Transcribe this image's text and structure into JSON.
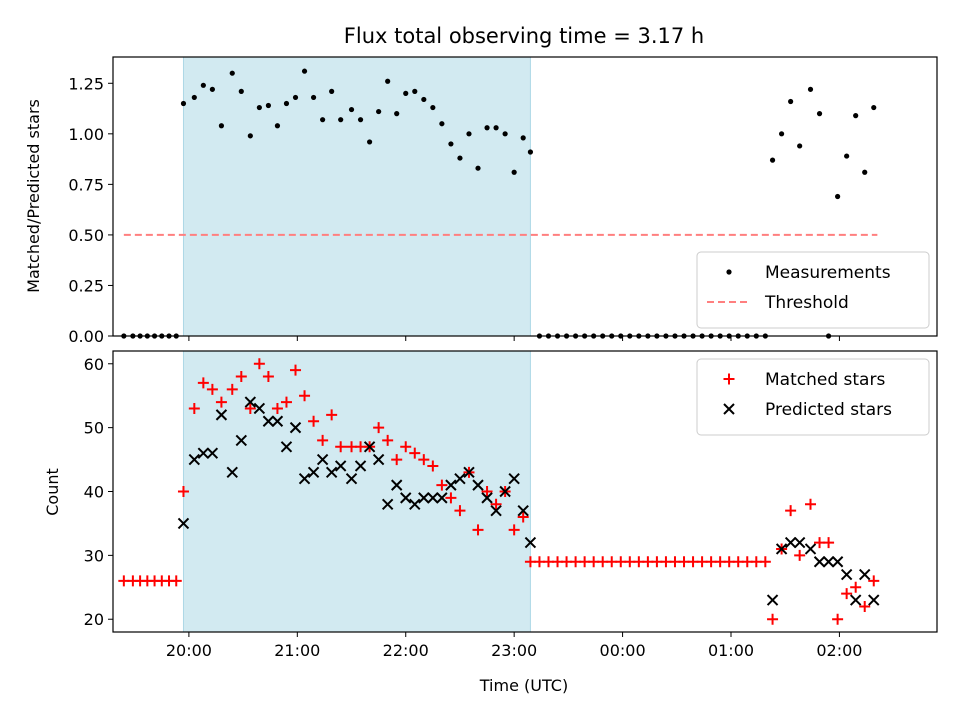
{
  "chart_data": [
    {
      "type": "scatter",
      "title": "Flux total observing time = 3.17 h",
      "xlabel": "",
      "ylabel": "Matched/Predicted stars",
      "xlim": [
        "19:18",
        "02:54"
      ],
      "ylim": [
        0,
        1.38
      ],
      "yticks": [
        0.0,
        0.25,
        0.5,
        0.75,
        1.0,
        1.25
      ],
      "ytick_labels": [
        "0.00",
        "0.25",
        "0.50",
        "0.75",
        "1.00",
        "1.25"
      ],
      "highlight_span": [
        "19:57",
        "23:09"
      ],
      "legend_position": "lower-right",
      "legend": [
        {
          "label": "Measurements",
          "marker": "dot",
          "color": "#000000"
        },
        {
          "label": "Threshold",
          "marker": "dashed-line",
          "color": "#ff7f7f"
        }
      ],
      "threshold": {
        "y": 0.5,
        "x_start": "19:24",
        "x_end": "02:21"
      },
      "series": [
        {
          "marker": "dot",
          "color": "#000000",
          "points": [
            [
              "19:24",
              0
            ],
            [
              "19:29",
              0
            ],
            [
              "19:33",
              0
            ],
            [
              "19:37",
              0
            ],
            [
              "19:41",
              0
            ],
            [
              "19:45",
              0
            ],
            [
              "19:49",
              0
            ],
            [
              "19:53",
              0
            ],
            [
              "19:57",
              1.15
            ],
            [
              "20:03",
              1.18
            ],
            [
              "20:08",
              1.24
            ],
            [
              "20:13",
              1.22
            ],
            [
              "20:18",
              1.04
            ],
            [
              "20:24",
              1.3
            ],
            [
              "20:29",
              1.21
            ],
            [
              "20:34",
              0.99
            ],
            [
              "20:39",
              1.13
            ],
            [
              "20:44",
              1.14
            ],
            [
              "20:49",
              1.04
            ],
            [
              "20:54",
              1.15
            ],
            [
              "20:59",
              1.18
            ],
            [
              "21:04",
              1.31
            ],
            [
              "21:09",
              1.18
            ],
            [
              "21:14",
              1.07
            ],
            [
              "21:19",
              1.21
            ],
            [
              "21:24",
              1.07
            ],
            [
              "21:30",
              1.12
            ],
            [
              "21:35",
              1.07
            ],
            [
              "21:40",
              0.96
            ],
            [
              "21:45",
              1.11
            ],
            [
              "21:50",
              1.26
            ],
            [
              "21:55",
              1.1
            ],
            [
              "22:00",
              1.2
            ],
            [
              "22:05",
              1.21
            ],
            [
              "22:10",
              1.17
            ],
            [
              "22:15",
              1.13
            ],
            [
              "22:20",
              1.05
            ],
            [
              "22:25",
              0.95
            ],
            [
              "22:30",
              0.88
            ],
            [
              "22:35",
              1.0
            ],
            [
              "22:40",
              0.83
            ],
            [
              "22:45",
              1.03
            ],
            [
              "22:50",
              1.03
            ],
            [
              "22:55",
              1.0
            ],
            [
              "23:00",
              0.81
            ],
            [
              "23:05",
              0.98
            ],
            [
              "23:09",
              0.91
            ],
            [
              "23:14",
              0
            ],
            [
              "23:19",
              0
            ],
            [
              "23:24",
              0
            ],
            [
              "23:29",
              0
            ],
            [
              "23:34",
              0
            ],
            [
              "23:39",
              0
            ],
            [
              "23:44",
              0
            ],
            [
              "23:49",
              0
            ],
            [
              "23:54",
              0
            ],
            [
              "23:59",
              0
            ],
            [
              "00:04",
              0
            ],
            [
              "00:09",
              0
            ],
            [
              "00:14",
              0
            ],
            [
              "00:19",
              0
            ],
            [
              "00:24",
              0
            ],
            [
              "00:29",
              0
            ],
            [
              "00:34",
              0
            ],
            [
              "00:39",
              0
            ],
            [
              "00:44",
              0
            ],
            [
              "00:49",
              0
            ],
            [
              "00:54",
              0
            ],
            [
              "00:59",
              0
            ],
            [
              "01:04",
              0
            ],
            [
              "01:09",
              0
            ],
            [
              "01:14",
              0
            ],
            [
              "01:19",
              0
            ],
            [
              "01:23",
              0.87
            ],
            [
              "01:28",
              1.0
            ],
            [
              "01:33",
              1.16
            ],
            [
              "01:38",
              0.94
            ],
            [
              "01:44",
              1.22
            ],
            [
              "01:49",
              1.1
            ],
            [
              "01:54",
              0
            ],
            [
              "01:59",
              0.69
            ],
            [
              "02:04",
              0.89
            ],
            [
              "02:09",
              1.09
            ],
            [
              "02:14",
              0.81
            ],
            [
              "02:19",
              1.13
            ]
          ]
        }
      ]
    },
    {
      "type": "scatter",
      "title": "",
      "xlabel": "Time (UTC)",
      "ylabel": "Count",
      "xlim": [
        "19:18",
        "02:54"
      ],
      "ylim": [
        18,
        62
      ],
      "yticks": [
        20,
        30,
        40,
        50,
        60
      ],
      "ytick_labels": [
        "20",
        "30",
        "40",
        "50",
        "60"
      ],
      "xticks": [
        "20:00",
        "21:00",
        "22:00",
        "23:00",
        "00:00",
        "01:00",
        "02:00"
      ],
      "xtick_labels": [
        "20:00",
        "21:00",
        "22:00",
        "23:00",
        "00:00",
        "01:00",
        "02:00"
      ],
      "highlight_span": [
        "19:57",
        "23:09"
      ],
      "legend_position": "upper-right",
      "series": [
        {
          "name": "Matched stars",
          "marker": "plus",
          "color": "#ff0000",
          "points": [
            [
              "19:24",
              26
            ],
            [
              "19:29",
              26
            ],
            [
              "19:33",
              26
            ],
            [
              "19:37",
              26
            ],
            [
              "19:41",
              26
            ],
            [
              "19:45",
              26
            ],
            [
              "19:49",
              26
            ],
            [
              "19:53",
              26
            ],
            [
              "19:57",
              40
            ],
            [
              "20:03",
              53
            ],
            [
              "20:08",
              57
            ],
            [
              "20:13",
              56
            ],
            [
              "20:18",
              54
            ],
            [
              "20:24",
              56
            ],
            [
              "20:29",
              58
            ],
            [
              "20:34",
              53
            ],
            [
              "20:39",
              60
            ],
            [
              "20:44",
              58
            ],
            [
              "20:49",
              53
            ],
            [
              "20:54",
              54
            ],
            [
              "20:59",
              59
            ],
            [
              "21:04",
              55
            ],
            [
              "21:09",
              51
            ],
            [
              "21:14",
              48
            ],
            [
              "21:19",
              52
            ],
            [
              "21:24",
              47
            ],
            [
              "21:30",
              47
            ],
            [
              "21:35",
              47
            ],
            [
              "21:40",
              47
            ],
            [
              "21:45",
              50
            ],
            [
              "21:50",
              48
            ],
            [
              "21:55",
              45
            ],
            [
              "22:00",
              47
            ],
            [
              "22:05",
              46
            ],
            [
              "22:10",
              45
            ],
            [
              "22:15",
              44
            ],
            [
              "22:20",
              41
            ],
            [
              "22:25",
              39
            ],
            [
              "22:30",
              37
            ],
            [
              "22:35",
              43
            ],
            [
              "22:40",
              34
            ],
            [
              "22:45",
              40
            ],
            [
              "22:50",
              38
            ],
            [
              "22:55",
              40
            ],
            [
              "23:00",
              34
            ],
            [
              "23:05",
              36
            ],
            [
              "23:09",
              29
            ],
            [
              "23:14",
              29
            ],
            [
              "23:19",
              29
            ],
            [
              "23:24",
              29
            ],
            [
              "23:29",
              29
            ],
            [
              "23:34",
              29
            ],
            [
              "23:39",
              29
            ],
            [
              "23:44",
              29
            ],
            [
              "23:49",
              29
            ],
            [
              "23:54",
              29
            ],
            [
              "23:59",
              29
            ],
            [
              "00:04",
              29
            ],
            [
              "00:09",
              29
            ],
            [
              "00:14",
              29
            ],
            [
              "00:19",
              29
            ],
            [
              "00:24",
              29
            ],
            [
              "00:29",
              29
            ],
            [
              "00:34",
              29
            ],
            [
              "00:39",
              29
            ],
            [
              "00:44",
              29
            ],
            [
              "00:49",
              29
            ],
            [
              "00:54",
              29
            ],
            [
              "00:59",
              29
            ],
            [
              "01:04",
              29
            ],
            [
              "01:09",
              29
            ],
            [
              "01:14",
              29
            ],
            [
              "01:19",
              29
            ],
            [
              "01:23",
              20
            ],
            [
              "01:28",
              31
            ],
            [
              "01:33",
              37
            ],
            [
              "01:38",
              30
            ],
            [
              "01:44",
              38
            ],
            [
              "01:49",
              32
            ],
            [
              "01:54",
              32
            ],
            [
              "01:59",
              20
            ],
            [
              "02:04",
              24
            ],
            [
              "02:09",
              25
            ],
            [
              "02:14",
              22
            ],
            [
              "02:19",
              26
            ]
          ]
        },
        {
          "name": "Predicted stars",
          "marker": "x",
          "color": "#000000",
          "points": [
            [
              "19:57",
              35
            ],
            [
              "20:03",
              45
            ],
            [
              "20:08",
              46
            ],
            [
              "20:13",
              46
            ],
            [
              "20:18",
              52
            ],
            [
              "20:24",
              43
            ],
            [
              "20:29",
              48
            ],
            [
              "20:34",
              54
            ],
            [
              "20:39",
              53
            ],
            [
              "20:44",
              51
            ],
            [
              "20:49",
              51
            ],
            [
              "20:54",
              47
            ],
            [
              "20:59",
              50
            ],
            [
              "21:04",
              42
            ],
            [
              "21:09",
              43
            ],
            [
              "21:14",
              45
            ],
            [
              "21:19",
              43
            ],
            [
              "21:24",
              44
            ],
            [
              "21:30",
              42
            ],
            [
              "21:35",
              44
            ],
            [
              "21:40",
              47
            ],
            [
              "21:45",
              45
            ],
            [
              "21:50",
              38
            ],
            [
              "21:55",
              41
            ],
            [
              "22:00",
              39
            ],
            [
              "22:05",
              38
            ],
            [
              "22:10",
              39
            ],
            [
              "22:15",
              39
            ],
            [
              "22:20",
              39
            ],
            [
              "22:25",
              41
            ],
            [
              "22:30",
              42
            ],
            [
              "22:35",
              43
            ],
            [
              "22:40",
              41
            ],
            [
              "22:45",
              39
            ],
            [
              "22:50",
              37
            ],
            [
              "22:55",
              40
            ],
            [
              "23:00",
              42
            ],
            [
              "23:05",
              37
            ],
            [
              "23:09",
              32
            ],
            [
              "01:23",
              23
            ],
            [
              "01:28",
              31
            ],
            [
              "01:33",
              32
            ],
            [
              "01:38",
              32
            ],
            [
              "01:44",
              31
            ],
            [
              "01:49",
              29
            ],
            [
              "01:54",
              29
            ],
            [
              "01:59",
              29
            ],
            [
              "02:04",
              27
            ],
            [
              "02:09",
              23
            ],
            [
              "02:14",
              27
            ],
            [
              "02:19",
              23
            ]
          ]
        }
      ]
    }
  ]
}
